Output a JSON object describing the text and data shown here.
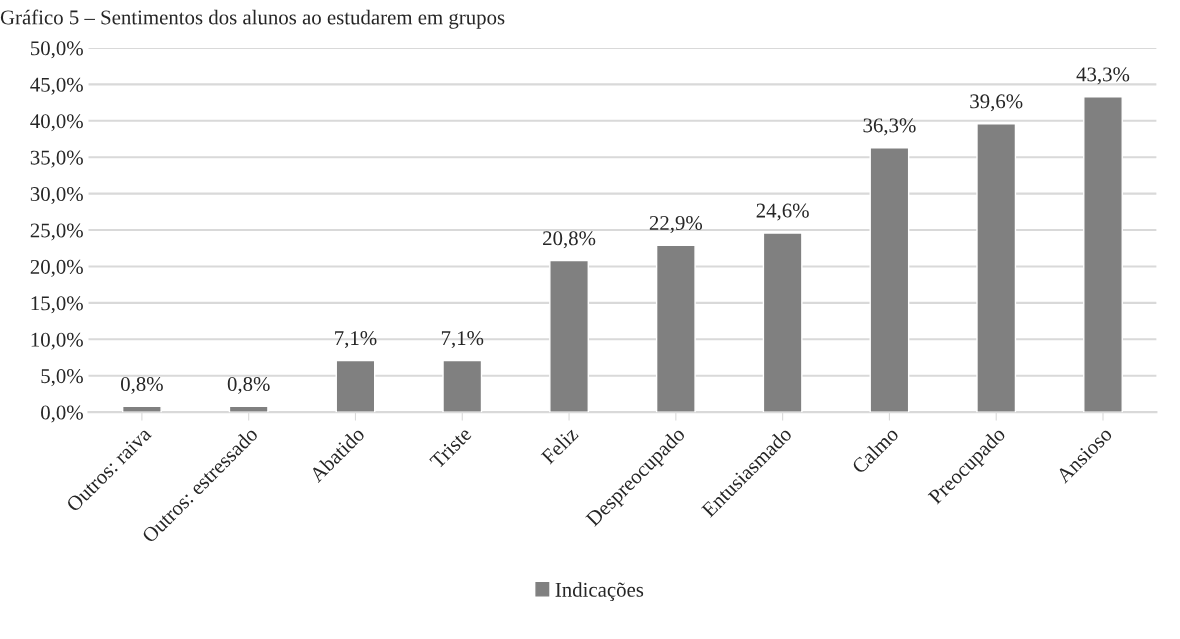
{
  "chart_data": {
    "type": "bar",
    "title": "Gráfico 5 – Sentimentos dos alunos ao estudarem em grupos",
    "categories": [
      "Outros: raiva",
      "Outros: estressado",
      "Abatido",
      "Triste",
      "Feliz",
      "Despreocupado",
      "Entusiasmado",
      "Calmo",
      "Preocupado",
      "Ansioso"
    ],
    "series": [
      {
        "name": "Indicações",
        "color": "#808080",
        "values": [
          0.8,
          0.8,
          7.1,
          7.1,
          20.8,
          22.9,
          24.6,
          36.3,
          39.6,
          43.3
        ],
        "value_labels": [
          "0,8%",
          "0,8%",
          "7,1%",
          "7,1%",
          "20,8%",
          "22,9%",
          "24,6%",
          "36,3%",
          "39,6%",
          "43,3%"
        ]
      }
    ],
    "ylim": [
      0,
      50
    ],
    "yticks": [
      {
        "value": 0,
        "label": "0,0%"
      },
      {
        "value": 5,
        "label": "5,0%"
      },
      {
        "value": 10,
        "label": "10,0%"
      },
      {
        "value": 15,
        "label": "15,0%"
      },
      {
        "value": 20,
        "label": "20,0%"
      },
      {
        "value": 25,
        "label": "25,0%"
      },
      {
        "value": 30,
        "label": "30,0%"
      },
      {
        "value": 35,
        "label": "35,0%"
      },
      {
        "value": 40,
        "label": "40,0%"
      },
      {
        "value": 45,
        "label": "45,0%"
      },
      {
        "value": 50,
        "label": "50,0%"
      }
    ],
    "grid": "y",
    "legend": "bottom"
  }
}
